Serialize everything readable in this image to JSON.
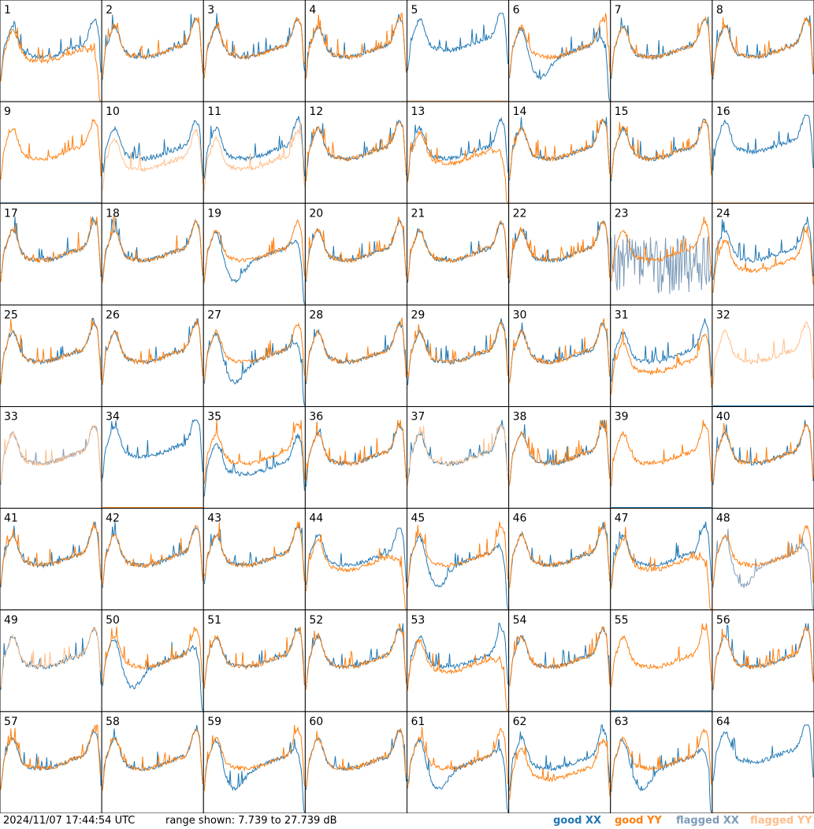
{
  "colors": {
    "good_xx": "#1f77b4",
    "good_yy": "#ff7f0e",
    "flagged_xx": "#7d9bb8",
    "flagged_yy": "#ffbe8a"
  },
  "footer": {
    "timestamp": "2024/11/07 17:44:54 UTC",
    "range": "range shown: 7.739 to 27.739 dB"
  },
  "legend": {
    "good": "good",
    "flagged": "flagged",
    "xx": "XX",
    "yy": "YY"
  },
  "chart_data": {
    "type": "line",
    "panels": [
      {
        "label": "1",
        "xx": "good",
        "yy": "good",
        "xx_shape": "normal",
        "yy_shape": "rolloff"
      },
      {
        "label": "2",
        "xx": "good",
        "yy": "good",
        "xx_shape": "normal",
        "yy_shape": "normal"
      },
      {
        "label": "3",
        "xx": "good",
        "yy": "good",
        "xx_shape": "normal",
        "yy_shape": "normal"
      },
      {
        "label": "4",
        "xx": "good",
        "yy": "good",
        "xx_shape": "normal",
        "yy_shape": "normal"
      },
      {
        "label": "5",
        "xx": "good",
        "yy": "flagged",
        "xx_shape": "high",
        "yy_shape": "dead"
      },
      {
        "label": "6",
        "xx": "good",
        "yy": "good",
        "xx_shape": "sag",
        "yy_shape": "normal"
      },
      {
        "label": "7",
        "xx": "good",
        "yy": "good",
        "xx_shape": "normal",
        "yy_shape": "normal"
      },
      {
        "label": "8",
        "xx": "good",
        "yy": "good",
        "xx_shape": "normal",
        "yy_shape": "normal"
      },
      {
        "label": "9",
        "xx": "flagged",
        "yy": "good",
        "xx_shape": "dead",
        "yy_shape": "normal"
      },
      {
        "label": "10",
        "xx": "good",
        "yy": "flagged",
        "xx_shape": "normal",
        "yy_shape": "low"
      },
      {
        "label": "11",
        "xx": "good",
        "yy": "flagged",
        "xx_shape": "normal",
        "yy_shape": "low"
      },
      {
        "label": "12",
        "xx": "good",
        "yy": "good",
        "xx_shape": "normal",
        "yy_shape": "normal"
      },
      {
        "label": "13",
        "xx": "good",
        "yy": "good",
        "xx_shape": "normal",
        "yy_shape": "rolloff"
      },
      {
        "label": "14",
        "xx": "good",
        "yy": "good",
        "xx_shape": "normal",
        "yy_shape": "normal"
      },
      {
        "label": "15",
        "xx": "good",
        "yy": "good",
        "xx_shape": "normal",
        "yy_shape": "normal"
      },
      {
        "label": "16",
        "xx": "good",
        "yy": "flagged",
        "xx_shape": "high",
        "yy_shape": "dead"
      },
      {
        "label": "17",
        "xx": "good",
        "yy": "good",
        "xx_shape": "normal",
        "yy_shape": "normal"
      },
      {
        "label": "18",
        "xx": "good",
        "yy": "good",
        "xx_shape": "normal",
        "yy_shape": "normal"
      },
      {
        "label": "19",
        "xx": "good",
        "yy": "good",
        "xx_shape": "sag",
        "yy_shape": "normal"
      },
      {
        "label": "20",
        "xx": "good",
        "yy": "good",
        "xx_shape": "normal",
        "yy_shape": "normal"
      },
      {
        "label": "21",
        "xx": "good",
        "yy": "good",
        "xx_shape": "normal",
        "yy_shape": "normal"
      },
      {
        "label": "22",
        "xx": "good",
        "yy": "good",
        "xx_shape": "normal",
        "yy_shape": "normal"
      },
      {
        "label": "23",
        "xx": "flagged",
        "yy": "good",
        "xx_shape": "noise",
        "yy_shape": "normal"
      },
      {
        "label": "24",
        "xx": "good",
        "yy": "good",
        "xx_shape": "normal",
        "yy_shape": "low"
      },
      {
        "label": "25",
        "xx": "good",
        "yy": "good",
        "xx_shape": "normal",
        "yy_shape": "normal"
      },
      {
        "label": "26",
        "xx": "good",
        "yy": "good",
        "xx_shape": "normal",
        "yy_shape": "normal"
      },
      {
        "label": "27",
        "xx": "good",
        "yy": "good",
        "xx_shape": "sag",
        "yy_shape": "normal"
      },
      {
        "label": "28",
        "xx": "good",
        "yy": "good",
        "xx_shape": "normal",
        "yy_shape": "normal"
      },
      {
        "label": "29",
        "xx": "good",
        "yy": "good",
        "xx_shape": "normal",
        "yy_shape": "normal"
      },
      {
        "label": "30",
        "xx": "good",
        "yy": "good",
        "xx_shape": "normal",
        "yy_shape": "normal"
      },
      {
        "label": "31",
        "xx": "good",
        "yy": "good",
        "xx_shape": "normal",
        "yy_shape": "low"
      },
      {
        "label": "32",
        "xx": "good",
        "yy": "flagged",
        "xx_shape": "dead",
        "yy_shape": "normal"
      },
      {
        "label": "33",
        "xx": "flagged",
        "yy": "flagged",
        "xx_shape": "normal",
        "yy_shape": "normal"
      },
      {
        "label": "34",
        "xx": "good",
        "yy": "good",
        "xx_shape": "high",
        "yy_shape": "dead"
      },
      {
        "label": "35",
        "xx": "good",
        "yy": "good",
        "xx_shape": "low",
        "yy_shape": "normal"
      },
      {
        "label": "36",
        "xx": "good",
        "yy": "good",
        "xx_shape": "normal",
        "yy_shape": "normal"
      },
      {
        "label": "37",
        "xx": "good",
        "yy": "flagged",
        "xx_shape": "normal",
        "yy_shape": "normal"
      },
      {
        "label": "38",
        "xx": "good",
        "yy": "good",
        "xx_shape": "normal",
        "yy_shape": "normal"
      },
      {
        "label": "39",
        "xx": "good",
        "yy": "good",
        "xx_shape": "dead",
        "yy_shape": "normal"
      },
      {
        "label": "40",
        "xx": "good",
        "yy": "good",
        "xx_shape": "normal",
        "yy_shape": "normal"
      },
      {
        "label": "41",
        "xx": "good",
        "yy": "good",
        "xx_shape": "normal",
        "yy_shape": "normal"
      },
      {
        "label": "42",
        "xx": "good",
        "yy": "good",
        "xx_shape": "normal",
        "yy_shape": "normal"
      },
      {
        "label": "43",
        "xx": "good",
        "yy": "good",
        "xx_shape": "normal",
        "yy_shape": "normal"
      },
      {
        "label": "44",
        "xx": "good",
        "yy": "good",
        "xx_shape": "normal",
        "yy_shape": "rolloff"
      },
      {
        "label": "45",
        "xx": "good",
        "yy": "good",
        "xx_shape": "sag",
        "yy_shape": "normal"
      },
      {
        "label": "46",
        "xx": "good",
        "yy": "good",
        "xx_shape": "normal",
        "yy_shape": "normal"
      },
      {
        "label": "47",
        "xx": "good",
        "yy": "good",
        "xx_shape": "normal",
        "yy_shape": "rolloff"
      },
      {
        "label": "48",
        "xx": "flagged",
        "yy": "good",
        "xx_shape": "sag",
        "yy_shape": "normal"
      },
      {
        "label": "49",
        "xx": "good",
        "yy": "flagged",
        "xx_shape": "normal",
        "yy_shape": "normal"
      },
      {
        "label": "50",
        "xx": "good",
        "yy": "good",
        "xx_shape": "sag",
        "yy_shape": "normal"
      },
      {
        "label": "51",
        "xx": "good",
        "yy": "good",
        "xx_shape": "normal",
        "yy_shape": "normal"
      },
      {
        "label": "52",
        "xx": "good",
        "yy": "good",
        "xx_shape": "normal",
        "yy_shape": "normal"
      },
      {
        "label": "53",
        "xx": "good",
        "yy": "good",
        "xx_shape": "normal",
        "yy_shape": "rolloff"
      },
      {
        "label": "54",
        "xx": "good",
        "yy": "good",
        "xx_shape": "normal",
        "yy_shape": "normal"
      },
      {
        "label": "55",
        "xx": "good",
        "yy": "good",
        "xx_shape": "dead",
        "yy_shape": "normal"
      },
      {
        "label": "56",
        "xx": "good",
        "yy": "good",
        "xx_shape": "normal",
        "yy_shape": "normal"
      },
      {
        "label": "57",
        "xx": "good",
        "yy": "good",
        "xx_shape": "normal",
        "yy_shape": "normal"
      },
      {
        "label": "58",
        "xx": "good",
        "yy": "good",
        "xx_shape": "normal",
        "yy_shape": "normal"
      },
      {
        "label": "59",
        "xx": "good",
        "yy": "good",
        "xx_shape": "sag",
        "yy_shape": "normal"
      },
      {
        "label": "60",
        "xx": "good",
        "yy": "good",
        "xx_shape": "normal",
        "yy_shape": "normal"
      },
      {
        "label": "61",
        "xx": "good",
        "yy": "good",
        "xx_shape": "sag",
        "yy_shape": "normal"
      },
      {
        "label": "62",
        "xx": "good",
        "yy": "good",
        "xx_shape": "normal",
        "yy_shape": "low"
      },
      {
        "label": "63",
        "xx": "good",
        "yy": "good",
        "xx_shape": "sag",
        "yy_shape": "normal"
      },
      {
        "label": "64",
        "xx": "good",
        "yy": "flagged",
        "xx_shape": "high",
        "yy_shape": "dead"
      }
    ]
  }
}
